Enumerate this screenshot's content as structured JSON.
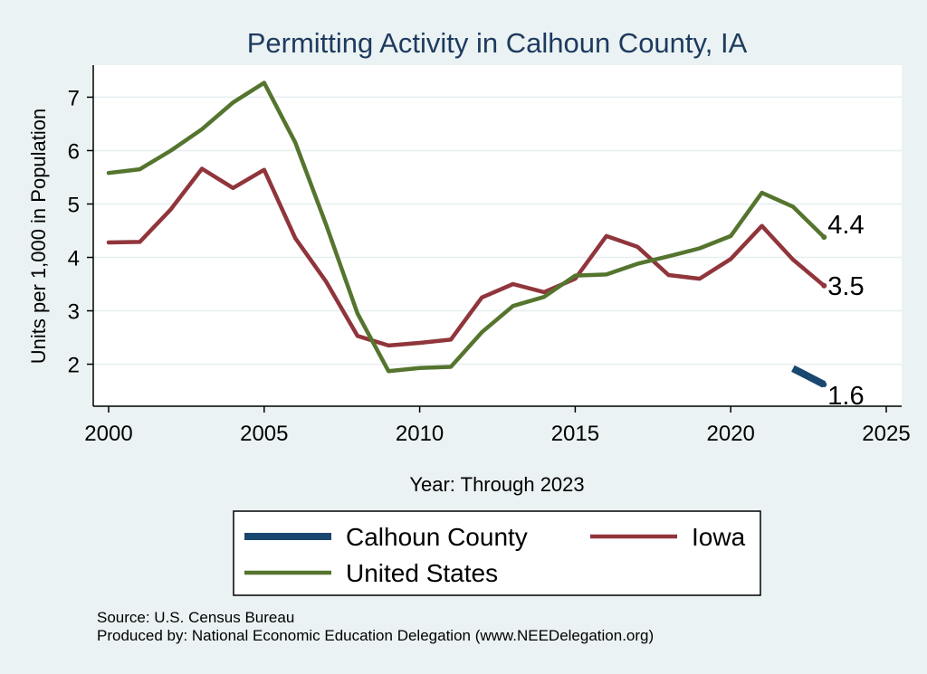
{
  "chart_data": {
    "type": "line",
    "title": "Permitting Activity in Calhoun County, IA",
    "xlabel": "Year: Through 2023",
    "ylabel": "Units per 1,000 in Population",
    "xlim": [
      2000,
      2025
    ],
    "ylim": [
      1.4,
      7.6
    ],
    "x_ticks": [
      2000,
      2005,
      2010,
      2015,
      2020,
      2025
    ],
    "y_ticks": [
      2,
      3,
      4,
      5,
      6,
      7
    ],
    "grid": true,
    "legend_position": "bottom",
    "series": [
      {
        "name": "Calhoun County",
        "color": "#1a476f",
        "x": [
          2022,
          2023
        ],
        "values": [
          1.92,
          1.62
        ],
        "end_label": "1.6"
      },
      {
        "name": "Iowa",
        "color": "#90353b",
        "x": [
          2000,
          2001,
          2002,
          2003,
          2004,
          2005,
          2006,
          2007,
          2008,
          2009,
          2010,
          2011,
          2012,
          2013,
          2014,
          2015,
          2016,
          2017,
          2018,
          2019,
          2020,
          2021,
          2022,
          2023
        ],
        "values": [
          4.28,
          4.29,
          4.9,
          5.66,
          5.3,
          5.64,
          4.36,
          3.54,
          2.53,
          2.35,
          2.4,
          2.46,
          3.25,
          3.5,
          3.35,
          3.6,
          4.4,
          4.2,
          3.67,
          3.6,
          3.97,
          4.59,
          3.96,
          3.47
        ],
        "end_label": "3.5"
      },
      {
        "name": "United States",
        "color": "#55752f",
        "x": [
          2000,
          2001,
          2002,
          2003,
          2004,
          2005,
          2006,
          2007,
          2008,
          2009,
          2010,
          2011,
          2012,
          2013,
          2014,
          2015,
          2016,
          2017,
          2018,
          2019,
          2020,
          2021,
          2022,
          2023
        ],
        "values": [
          5.58,
          5.65,
          6.0,
          6.4,
          6.9,
          7.27,
          6.15,
          4.6,
          2.95,
          1.87,
          1.93,
          1.95,
          2.6,
          3.09,
          3.26,
          3.66,
          3.68,
          3.88,
          4.02,
          4.17,
          4.4,
          5.21,
          4.95,
          4.38
        ],
        "end_label": "4.4"
      }
    ],
    "legend": [
      {
        "label": "Calhoun County",
        "color": "#1a476f"
      },
      {
        "label": "Iowa",
        "color": "#90353b"
      },
      {
        "label": "United States",
        "color": "#55752f"
      }
    ]
  },
  "footnotes": {
    "source": "Source: U.S. Census Bureau",
    "produced_by": "Produced by: National Economic Education Delegation (www.NEEDelegation.org)"
  }
}
